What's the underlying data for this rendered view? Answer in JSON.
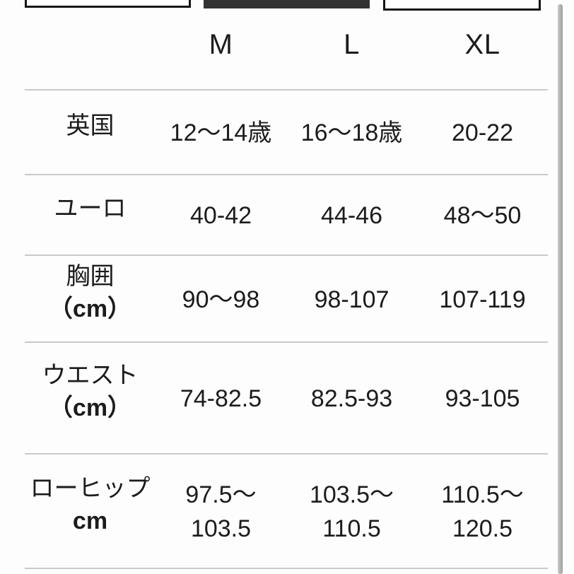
{
  "colors": {
    "selected_tab": "#333333",
    "tab_border": "#161616",
    "divider": "#c9c9c9",
    "text": "#1c1c1c",
    "scrollbar": "#ababab"
  },
  "tabs": {
    "count": 3,
    "selected_index": 1
  },
  "size_chart": {
    "column_headers": [
      "M",
      "L",
      "XL"
    ],
    "rows": [
      {
        "label": "英国",
        "unit": "",
        "values": [
          "12〜14歳",
          "16〜18歳",
          "20-22"
        ]
      },
      {
        "label": "ユーロ",
        "unit": "",
        "values": [
          "40-42",
          "44-46",
          "48〜50"
        ]
      },
      {
        "label": "胸囲",
        "unit": "（cm）",
        "values": [
          "90〜98",
          "98-107",
          "107-119"
        ]
      },
      {
        "label": "ウエスト",
        "unit": "（cm）",
        "values": [
          "74-82.5",
          "82.5-93",
          "93-105"
        ]
      },
      {
        "label": "ローヒップ",
        "unit": "cm",
        "values": [
          "97.5〜103.5",
          "103.5〜\n110.5",
          "110.5〜\n120.5"
        ]
      }
    ]
  }
}
